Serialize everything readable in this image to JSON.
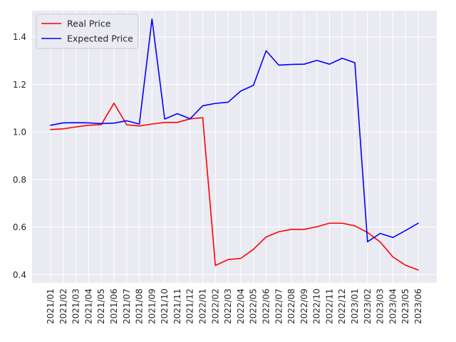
{
  "chart_data": {
    "type": "line",
    "title": "",
    "xlabel": "",
    "ylabel": "",
    "x": [
      "2021/01",
      "2021/02",
      "2021/03",
      "2021/04",
      "2021/05",
      "2021/06",
      "2021/07",
      "2021/08",
      "2021/09",
      "2021/10",
      "2021/11",
      "2021/12",
      "2022/01",
      "2022/02",
      "2022/03",
      "2022/04",
      "2022/05",
      "2022/06",
      "2022/07",
      "2022/08",
      "2022/09",
      "2022/10",
      "2022/11",
      "2022/12",
      "2023/01",
      "2023/02",
      "2023/03",
      "2023/04",
      "2023/05",
      "2023/06"
    ],
    "ylim": [
      0.365,
      1.51
    ],
    "yticks": [
      0.4,
      0.6,
      0.8,
      1.0,
      1.2,
      1.4
    ],
    "ytick_labels": [
      "0.4",
      "0.6",
      "0.8",
      "1.0",
      "1.2",
      "1.4"
    ],
    "grid": true,
    "legend_position": "top-left",
    "series": [
      {
        "name": "Real Price",
        "color": "#ff0000",
        "values": [
          1.01,
          1.013,
          1.021,
          1.028,
          1.031,
          1.121,
          1.03,
          1.025,
          1.033,
          1.04,
          1.04,
          1.055,
          1.06,
          0.438,
          0.463,
          0.468,
          0.506,
          0.558,
          0.58,
          0.59,
          0.59,
          0.601,
          0.616,
          0.616,
          0.605,
          0.577,
          0.537,
          0.474,
          0.439,
          0.419
        ]
      },
      {
        "name": "Expected Price",
        "color": "#0000ff",
        "values": [
          1.028,
          1.038,
          1.039,
          1.038,
          1.035,
          1.037,
          1.047,
          1.033,
          1.475,
          1.054,
          1.077,
          1.055,
          1.11,
          1.12,
          1.125,
          1.172,
          1.196,
          1.341,
          1.281,
          1.284,
          1.285,
          1.301,
          1.285,
          1.31,
          1.291,
          0.538,
          0.573,
          0.556,
          0.585,
          0.616
        ]
      }
    ]
  }
}
